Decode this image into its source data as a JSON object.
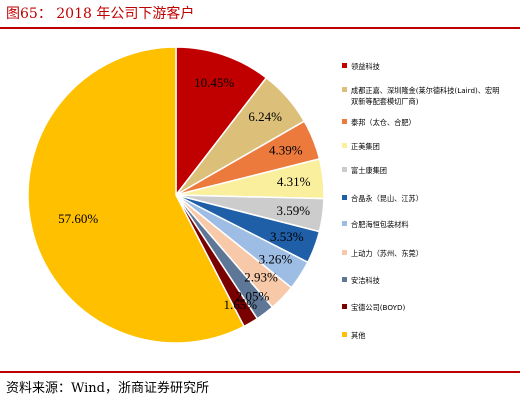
{
  "figure": {
    "title": "图65： 2018 年公司下游客户",
    "source": "资料来源：Wind，浙商证券研究所"
  },
  "chart_data": {
    "type": "pie",
    "title": "",
    "legend_position": "right",
    "start": "12 o'clock, clockwise",
    "slices": [
      {
        "label": "领益科技",
        "value": 10.45,
        "display": "10.45%",
        "color": "#c00000"
      },
      {
        "label": "成都正嘉、深圳隆金(莱尔德科技(Laird)、宏明双新等配套模切厂商)",
        "legend_lines": [
          "成都正嘉、深圳隆金(莱尔德科技(Laird)、宏明",
          "双新等配套模切厂商)"
        ],
        "value": 6.24,
        "display": "6.24%",
        "color": "#dcc07a"
      },
      {
        "label": "泰邦（太仓、合肥）",
        "value": 4.39,
        "display": "4.39%",
        "color": "#ec7a3c"
      },
      {
        "label": "正美集团",
        "value": 4.31,
        "display": "4.31%",
        "color": "#f9ef9c"
      },
      {
        "label": "富士康集团",
        "value": 3.59,
        "display": "3.59%",
        "color": "#cccccc"
      },
      {
        "label": "合晶永（昆山、江苏）",
        "value": 3.53,
        "display": "3.53%",
        "color": "#1f5fa8"
      },
      {
        "label": "合肥海恒包装材料",
        "value": 3.26,
        "display": "3.26%",
        "color": "#9dbde4"
      },
      {
        "label": "上动力（苏州、东莞）",
        "value": 2.93,
        "display": "2.93%",
        "color": "#f8c9a9"
      },
      {
        "label": "安洁科技",
        "value": 2.05,
        "display": "2.05%",
        "color": "#5f7796"
      },
      {
        "label": "宝德公司(BOYD)",
        "value": 1.65,
        "display": "1.65%",
        "color": "#7a0000"
      },
      {
        "label": "其他",
        "value": 57.6,
        "display": "57.60%",
        "color": "#ffc000"
      }
    ]
  }
}
